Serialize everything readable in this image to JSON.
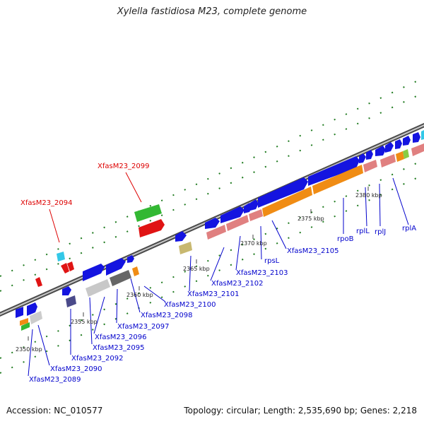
{
  "title": "Xylella fastidiosa M23, complete genome",
  "footer": {
    "accession": "Accession: NC_010577",
    "topology": "Topology: circular; Length: 2,535,690 bp; Genes: 2,218"
  },
  "colors": {
    "backbone": "#8a8a8a",
    "cds": "#1414e0",
    "rrna": "#f08c14",
    "pseudo": "#e08080",
    "highlight": "#e01414",
    "highlight_green": "#33b833",
    "label_blue": "#0000cc",
    "label_red": "#dd0000",
    "dots": "#1e7a1e"
  },
  "ticks": [
    "2350 kbp",
    "2355 kbp",
    "2360 kbp",
    "2365 kbp",
    "2370 kbp",
    "2375 kbp",
    "2380 kbp"
  ],
  "gene_labels": {
    "g2089": "XfasM23_2089",
    "g2090": "XfasM23_2090",
    "g2092": "XfasM23_2092",
    "g2095": "XfasM23_2095",
    "g2096": "XfasM23_2096",
    "g2097": "XfasM23_2097",
    "g2098": "XfasM23_2098",
    "g2100": "XfasM23_2100",
    "g2101": "XfasM23_2101",
    "g2102": "XfasM23_2102",
    "g2103": "XfasM23_2103",
    "g2105": "XfasM23_2105",
    "rpsL": "rpsL",
    "rpoB": "rpoB",
    "rplL": "rplL",
    "rplJ": "rplJ",
    "rplA": "rplA",
    "g2094": "XfasM23_2094",
    "g2099": "XfasM23_2099"
  }
}
